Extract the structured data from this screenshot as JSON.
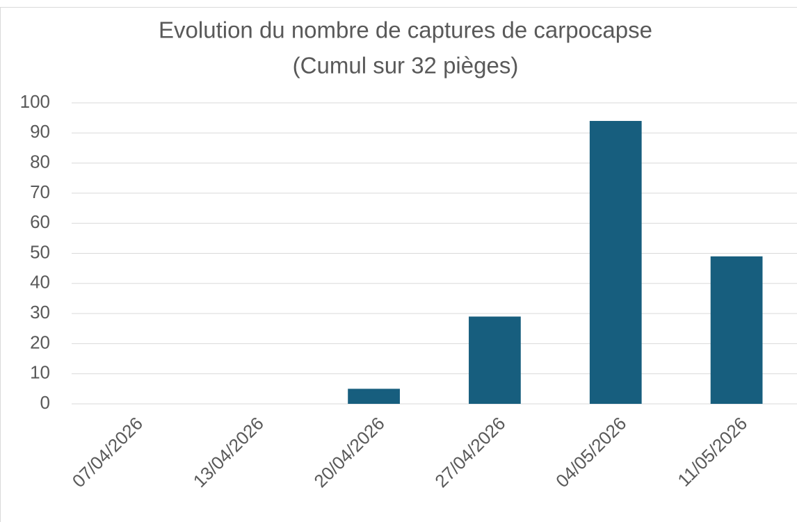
{
  "chart_data": {
    "type": "bar",
    "title": [
      "Evolution du nombre de captures de carpocapse",
      "(Cumul sur 32 pièges)"
    ],
    "categories": [
      "07/04/2026",
      "13/04/2026",
      "20/04/2026",
      "27/04/2026",
      "04/05/2026",
      "11/05/2026"
    ],
    "values": [
      0,
      0,
      5,
      29,
      94,
      49
    ],
    "color": "#175e7e",
    "ylim": [
      0,
      100
    ],
    "yticks": [
      0,
      10,
      20,
      30,
      40,
      50,
      60,
      70,
      80,
      90,
      100
    ],
    "grid": true
  }
}
